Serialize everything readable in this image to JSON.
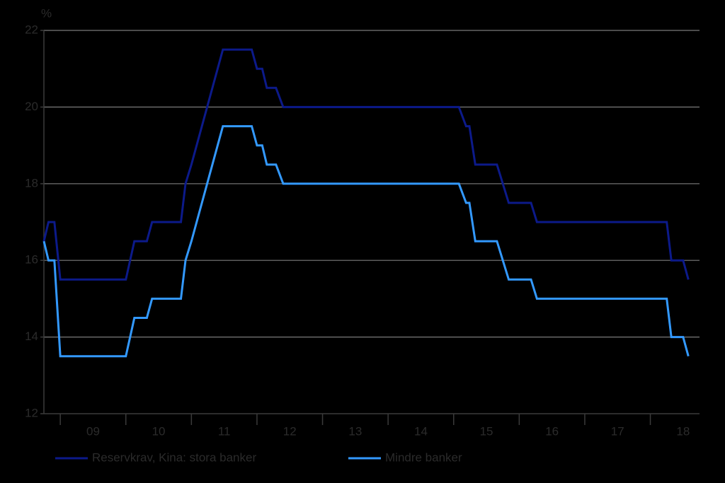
{
  "chart_data": {
    "type": "line",
    "y_unit": "%",
    "x": [
      2008.75,
      2008.82,
      2008.91,
      2009.0,
      2010.0,
      2010.13,
      2010.32,
      2010.4,
      2010.84,
      2010.91,
      2011.0,
      2011.48,
      2011.92,
      2012.0,
      2012.08,
      2012.15,
      2012.29,
      2012.4,
      2015.08,
      2015.19,
      2015.24,
      2015.33,
      2015.66,
      2015.84,
      2016.18,
      2016.27,
      2018.25,
      2018.32,
      2018.5,
      2018.58
    ],
    "series": [
      {
        "name": "Reservkrav, Kina: stora banker",
        "color": "#0c1a8a",
        "values": [
          16.5,
          17,
          17,
          15.5,
          15.5,
          16.5,
          16.5,
          17,
          17,
          18,
          18.5,
          21.5,
          21.5,
          21,
          21,
          20.5,
          20.5,
          20,
          20,
          19.5,
          19.5,
          18.5,
          18.5,
          17.5,
          17.5,
          17,
          17,
          16,
          16,
          15.5
        ]
      },
      {
        "name": "Mindre banker",
        "color": "#3399ff",
        "values": [
          16.5,
          16,
          16,
          13.5,
          13.5,
          14.5,
          14.5,
          15,
          15,
          16,
          16.5,
          19.5,
          19.5,
          19,
          19,
          18.5,
          18.5,
          18,
          18,
          17.5,
          17.5,
          16.5,
          16.5,
          15.5,
          15.5,
          15,
          15,
          14,
          14,
          13.5
        ]
      }
    ],
    "xlim": [
      2008.75,
      2018.75
    ],
    "xticks": [
      {
        "value": 2009.5,
        "label": "09"
      },
      {
        "value": 2010.5,
        "label": "10"
      },
      {
        "value": 2011.5,
        "label": "11"
      },
      {
        "value": 2012.5,
        "label": "12"
      },
      {
        "value": 2013.5,
        "label": "13"
      },
      {
        "value": 2014.5,
        "label": "14"
      },
      {
        "value": 2015.5,
        "label": "15"
      },
      {
        "value": 2016.5,
        "label": "16"
      },
      {
        "value": 2017.5,
        "label": "17"
      },
      {
        "value": 2018.5,
        "label": "18"
      }
    ],
    "ylim": [
      12,
      22
    ],
    "yticks": [
      12,
      14,
      16,
      18,
      20,
      22
    ],
    "grid": true,
    "legend": "bottom"
  }
}
